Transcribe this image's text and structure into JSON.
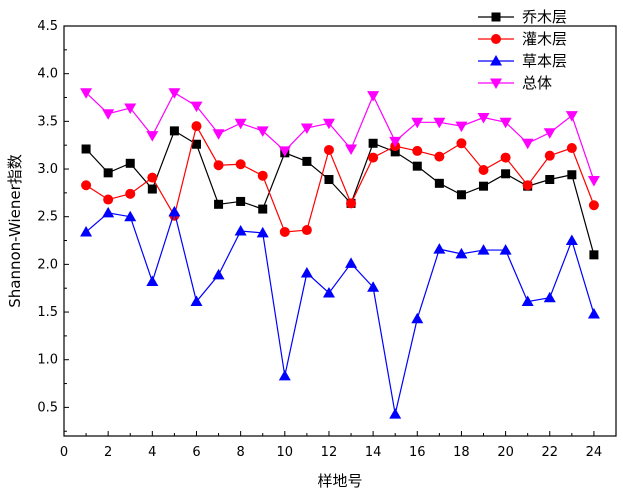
{
  "chart_data": {
    "type": "line",
    "title": "",
    "xlabel": "样地号",
    "ylabel": "Shannon-Wiener指数",
    "xlim": [
      0,
      25
    ],
    "ylim": [
      0.2,
      4.5
    ],
    "xticks": [
      0,
      2,
      4,
      6,
      8,
      10,
      12,
      14,
      16,
      18,
      20,
      22,
      24
    ],
    "yticks": [
      0.5,
      1.0,
      1.5,
      2.0,
      2.5,
      3.0,
      3.5,
      4.0,
      4.5
    ],
    "ytick_labels": [
      "0.5",
      "1.0",
      "1.5",
      "2.0",
      "2.5",
      "3.0",
      "3.5",
      "4.0",
      "4.5"
    ],
    "x": [
      1,
      2,
      3,
      4,
      5,
      6,
      7,
      8,
      9,
      10,
      11,
      12,
      13,
      14,
      15,
      16,
      17,
      18,
      19,
      20,
      21,
      22,
      23,
      24
    ],
    "legend_position": "top-right",
    "series": [
      {
        "name": "乔木层",
        "color": "#000000",
        "marker": "square",
        "values": [
          3.21,
          2.96,
          3.06,
          2.79,
          3.4,
          3.26,
          2.63,
          2.66,
          2.58,
          3.17,
          3.08,
          2.89,
          2.64,
          3.27,
          3.18,
          3.03,
          2.85,
          2.73,
          2.82,
          2.95,
          2.82,
          2.89,
          2.94,
          2.1
        ]
      },
      {
        "name": "灌木层",
        "color": "#ff0000",
        "marker": "circle",
        "values": [
          2.83,
          2.68,
          2.74,
          2.91,
          2.51,
          3.45,
          3.04,
          3.05,
          2.93,
          2.34,
          2.36,
          3.2,
          2.64,
          3.12,
          3.24,
          3.19,
          3.13,
          3.27,
          2.99,
          3.12,
          2.83,
          3.14,
          3.22,
          2.62
        ]
      },
      {
        "name": "草本层",
        "color": "#0000ff",
        "marker": "triangle-up",
        "values": [
          2.34,
          2.54,
          2.5,
          1.82,
          2.55,
          1.61,
          1.89,
          2.35,
          2.33,
          0.83,
          1.91,
          1.7,
          2.01,
          1.76,
          0.43,
          1.43,
          2.16,
          2.11,
          2.15,
          2.15,
          1.61,
          1.65,
          2.25,
          1.48
        ]
      },
      {
        "name": "总体",
        "color": "#ff00ff",
        "marker": "triangle-down",
        "values": [
          3.8,
          3.58,
          3.64,
          3.35,
          3.8,
          3.66,
          3.37,
          3.48,
          3.4,
          3.19,
          3.43,
          3.48,
          3.21,
          3.77,
          3.29,
          3.49,
          3.49,
          3.45,
          3.54,
          3.49,
          3.27,
          3.38,
          3.56,
          2.88
        ]
      }
    ]
  }
}
